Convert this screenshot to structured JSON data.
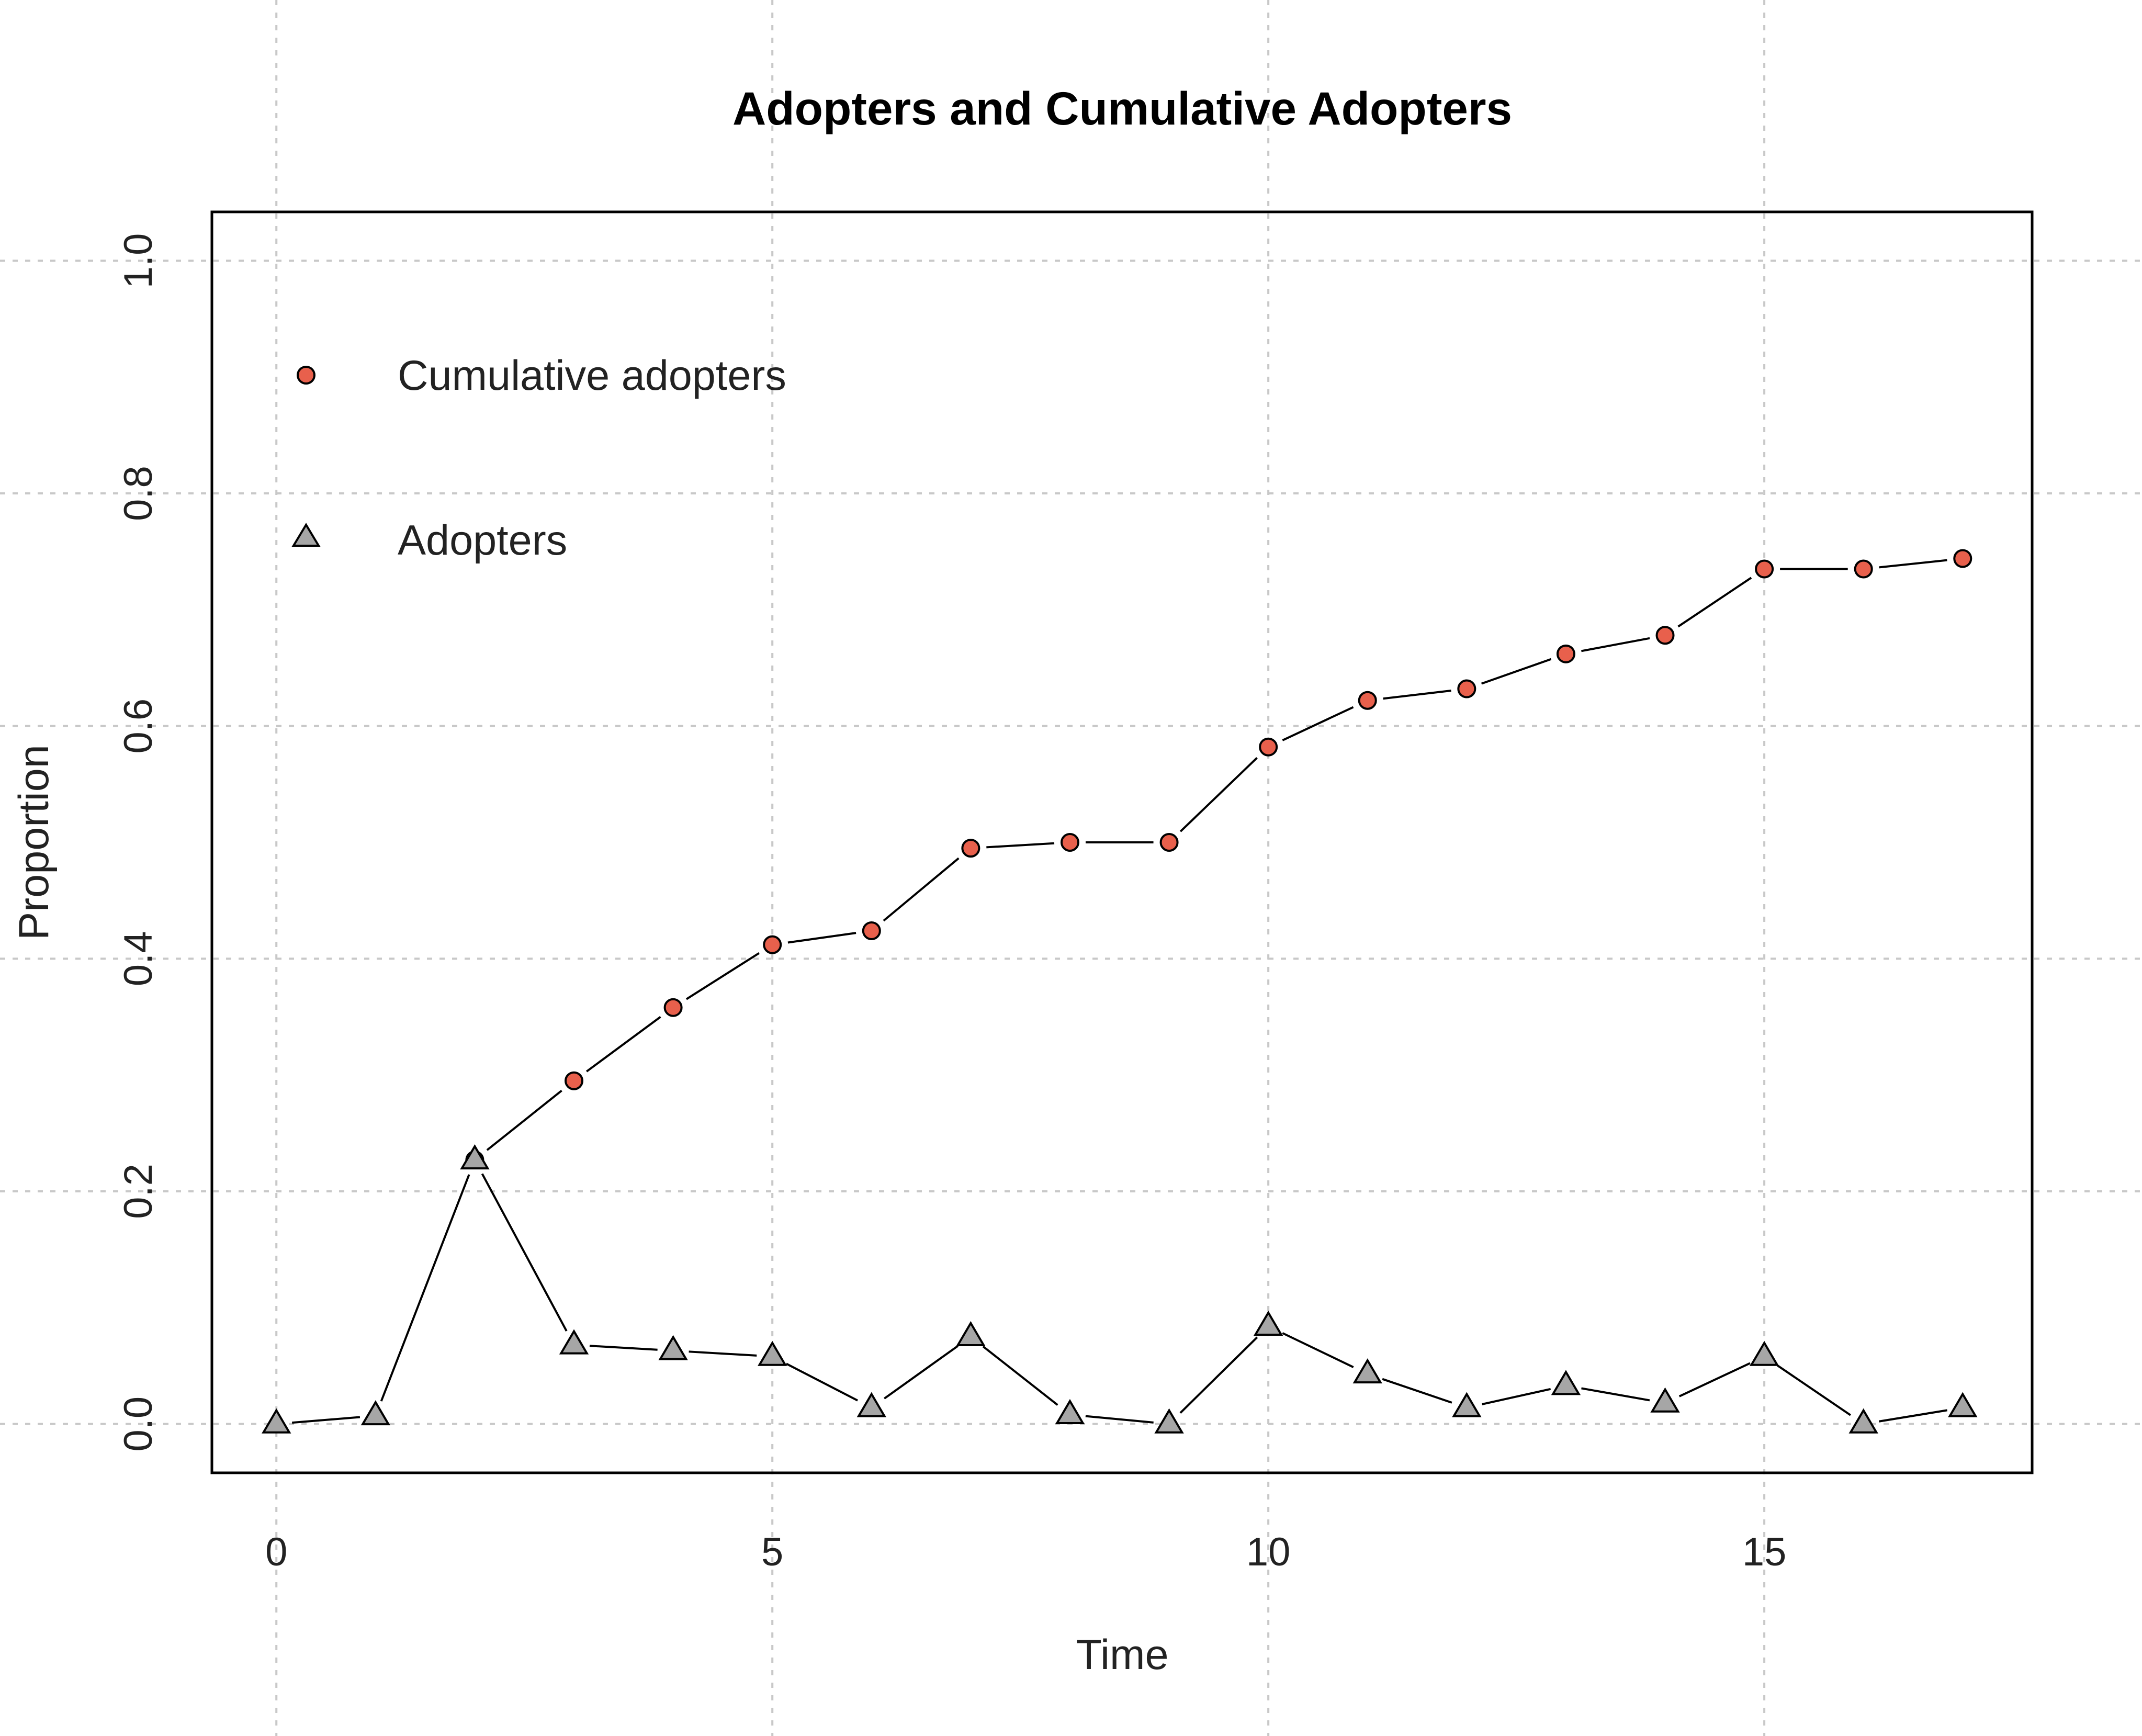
{
  "chart_data": {
    "type": "line",
    "title": "Adopters and Cumulative Adopters",
    "xlabel": "Time",
    "ylabel": "Proportion",
    "x": [
      0,
      1,
      2,
      3,
      4,
      5,
      6,
      7,
      8,
      9,
      10,
      11,
      12,
      13,
      14,
      15,
      16,
      17
    ],
    "xlim": [
      -0.65,
      17.7
    ],
    "ylim": [
      -0.042,
      1.042
    ],
    "xticks": [
      0,
      5,
      10,
      15
    ],
    "xtick_labels": [
      "0",
      "5",
      "10",
      "15"
    ],
    "yticks": [
      0,
      0.2,
      0.4,
      0.6,
      0.8,
      1.0
    ],
    "ytick_labels": [
      "0.0",
      "0.2",
      "0.4",
      "0.6",
      "0.8",
      "1.0"
    ],
    "grid": true,
    "legend_position": "top-left",
    "series": [
      {
        "name": "Cumulative adopters",
        "marker": "circle",
        "color": "#e8604c",
        "values": [
          null,
          null,
          0.227,
          0.295,
          0.358,
          0.412,
          0.424,
          0.495,
          0.5,
          0.5,
          0.582,
          0.622,
          0.632,
          0.662,
          0.678,
          0.735,
          0.735,
          0.744
        ]
      },
      {
        "name": "Adopters",
        "marker": "triangle",
        "color": "#a6a6a6",
        "values": [
          0.0,
          0.007,
          0.227,
          0.068,
          0.063,
          0.058,
          0.014,
          0.075,
          0.008,
          0.0,
          0.084,
          0.043,
          0.014,
          0.033,
          0.018,
          0.058,
          0.0,
          0.014
        ]
      }
    ]
  }
}
